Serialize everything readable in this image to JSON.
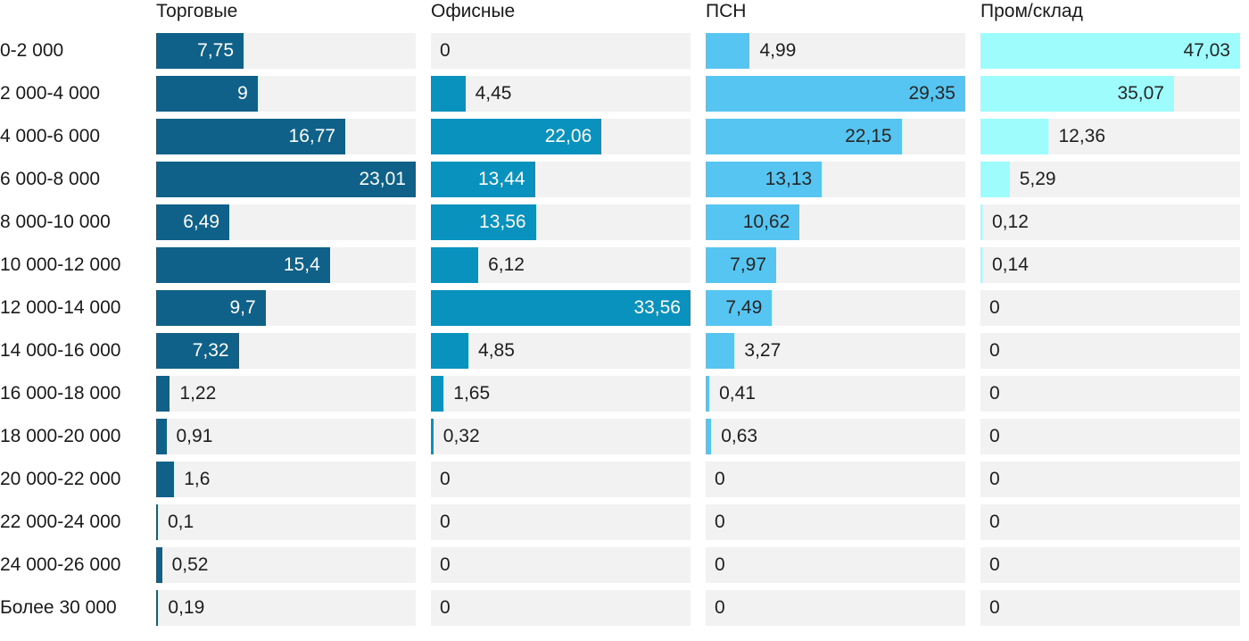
{
  "chart_data": {
    "type": "bar",
    "orientation": "horizontal",
    "title": "",
    "scaling": "each column scaled independently, column max = full track width",
    "track_color": "#f2f2f2",
    "text_color": "#1e1e1e",
    "decimal_separator": ",",
    "categories": [
      "0-2 000",
      "2 000-4 000",
      "4 000-6 000",
      "6 000-8 000",
      "8 000-10 000",
      "10 000-12 000",
      "12 000-14 000",
      "14 000-16 000",
      "16 000-18 000",
      "18 000-20 000",
      "20 000-22 000",
      "22 000-24 000",
      "24 000-26 000",
      "Более 30 000"
    ],
    "series": [
      {
        "name": "Торговые",
        "color": "#0f6189",
        "label_color_inside": "#ffffff",
        "values": [
          7.75,
          9,
          16.77,
          23.01,
          6.49,
          15.4,
          9.7,
          7.32,
          1.22,
          0.91,
          1.6,
          0.1,
          0.52,
          0.19
        ],
        "labels": [
          "7,75",
          "9",
          "16,77",
          "23,01",
          "6,49",
          "15,4",
          "9,7",
          "7,32",
          "1,22",
          "0,91",
          "1,6",
          "0,1",
          "0,52",
          "0,19"
        ]
      },
      {
        "name": "Офисные",
        "color": "#0a92be",
        "label_color_inside": "#ffffff",
        "values": [
          0,
          4.45,
          22.06,
          13.44,
          13.56,
          6.12,
          33.56,
          4.85,
          1.65,
          0.32,
          0,
          0,
          0,
          0
        ],
        "labels": [
          "0",
          "4,45",
          "22,06",
          "13,44",
          "13,56",
          "6,12",
          "33,56",
          "4,85",
          "1,65",
          "0,32",
          "0",
          "0",
          "0",
          "0"
        ]
      },
      {
        "name": "ПСН",
        "color": "#57c5f1",
        "label_color_inside": "#262626",
        "values": [
          4.99,
          29.35,
          22.15,
          13.13,
          10.62,
          7.97,
          7.49,
          3.27,
          0.41,
          0.63,
          0,
          0,
          0,
          0
        ],
        "labels": [
          "4,99",
          "29,35",
          "22,15",
          "13,13",
          "10,62",
          "7,97",
          "7,49",
          "3,27",
          "0,41",
          "0,63",
          "0",
          "0",
          "0",
          "0"
        ]
      },
      {
        "name": "Пром/склад",
        "color": "#9ffcfc",
        "label_color_inside": "#262626",
        "values": [
          47.03,
          35.07,
          12.36,
          5.29,
          0.12,
          0.14,
          0,
          0,
          0,
          0,
          0,
          0,
          0,
          0
        ],
        "labels": [
          "47,03",
          "35,07",
          "12,36",
          "5,29",
          "0,12",
          "0,14",
          "0",
          "0",
          "0",
          "0",
          "0",
          "0",
          "0",
          "0"
        ]
      }
    ]
  }
}
